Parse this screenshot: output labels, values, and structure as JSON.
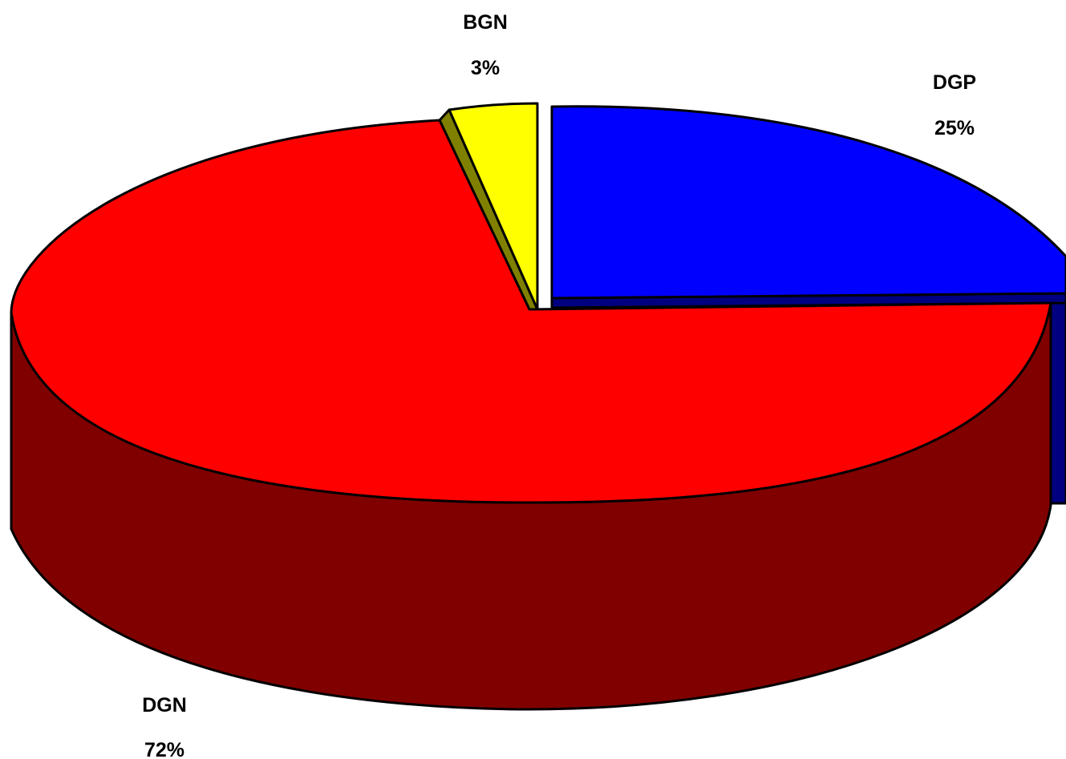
{
  "chart_data": {
    "type": "pie",
    "style": "3d-exploded",
    "slices": [
      {
        "label": "DGP",
        "percent_label": "25%",
        "value": 25,
        "color": "#0000ff",
        "side_color": "#000080"
      },
      {
        "label": "DGN",
        "percent_label": "72%",
        "value": 72,
        "color": "#ff0000",
        "side_color": "#800000"
      },
      {
        "label": "BGN",
        "percent_label": "3%",
        "value": 3,
        "color": "#ffff00",
        "side_color": "#808000"
      }
    ]
  }
}
